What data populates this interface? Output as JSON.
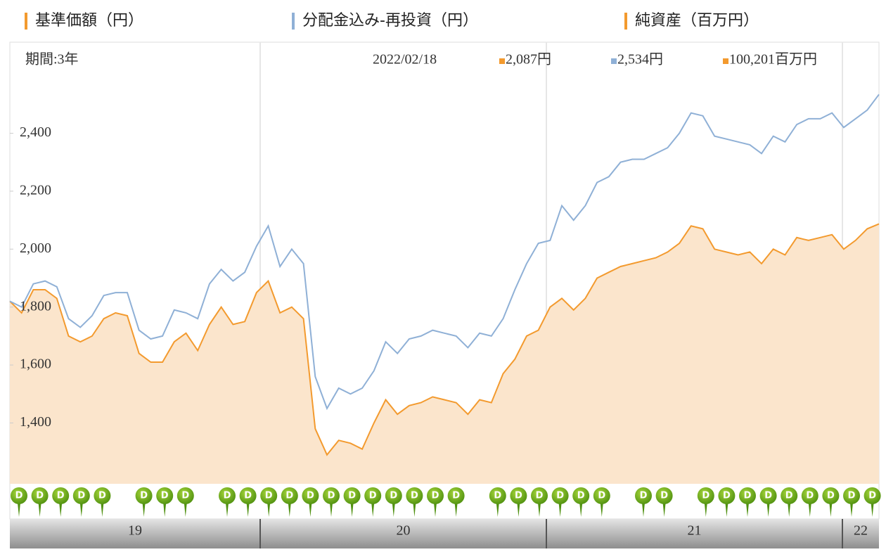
{
  "chart_data": {
    "type": "line",
    "net_assets_label": "純資産（百万円）",
    "net_assets_color": "#f39a2e",
    "period_label": "期間:3年",
    "date": "2022/02/18",
    "legend_values": [
      "2,087円",
      "2,534円",
      "100,201百万円"
    ],
    "series": [
      {
        "name": "基準価額（円）",
        "color": "#f39a2e",
        "fill": "#fbe5cc",
        "values": [
          1820,
          1780,
          1860,
          1860,
          1830,
          1700,
          1680,
          1700,
          1760,
          1780,
          1770,
          1640,
          1610,
          1610,
          1680,
          1710,
          1650,
          1740,
          1800,
          1740,
          1750,
          1850,
          1890,
          1780,
          1800,
          1760,
          1380,
          1290,
          1340,
          1330,
          1310,
          1400,
          1480,
          1430,
          1460,
          1470,
          1490,
          1480,
          1470,
          1430,
          1480,
          1470,
          1570,
          1620,
          1700,
          1720,
          1800,
          1830,
          1790,
          1830,
          1900,
          1920,
          1940,
          1950,
          1960,
          1970,
          1990,
          2020,
          2080,
          2070,
          2000,
          1990,
          1980,
          1990,
          1950,
          2000,
          1980,
          2040,
          2030,
          2040,
          2050,
          2000,
          2030,
          2070,
          2087
        ]
      },
      {
        "name": "分配金込み-再投資（円）",
        "color": "#8fb0d6",
        "values": [
          1820,
          1800,
          1880,
          1890,
          1870,
          1760,
          1730,
          1770,
          1840,
          1850,
          1850,
          1720,
          1690,
          1700,
          1790,
          1780,
          1760,
          1880,
          1930,
          1890,
          1920,
          2010,
          2080,
          1940,
          2000,
          1950,
          1560,
          1450,
          1520,
          1500,
          1520,
          1580,
          1680,
          1640,
          1690,
          1700,
          1720,
          1710,
          1700,
          1660,
          1710,
          1700,
          1760,
          1860,
          1950,
          2020,
          2030,
          2150,
          2100,
          2150,
          2230,
          2250,
          2300,
          2310,
          2310,
          2330,
          2350,
          2400,
          2470,
          2460,
          2390,
          2380,
          2370,
          2360,
          2330,
          2390,
          2370,
          2430,
          2450,
          2450,
          2470,
          2420,
          2450,
          2480,
          2534
        ]
      }
    ],
    "ylim": [
      1190,
      2605
    ],
    "yticks": [
      {
        "value": 1400,
        "label": "1,400"
      },
      {
        "value": 1600,
        "label": "1,600"
      },
      {
        "value": 1800,
        "label": "1,800"
      },
      {
        "value": 2000,
        "label": "2,000"
      },
      {
        "value": 2200,
        "label": "2,200"
      },
      {
        "value": 2400,
        "label": "2,400"
      }
    ],
    "x_labels": [
      "19",
      "20",
      "21",
      "22"
    ],
    "dividend_label": "D"
  }
}
